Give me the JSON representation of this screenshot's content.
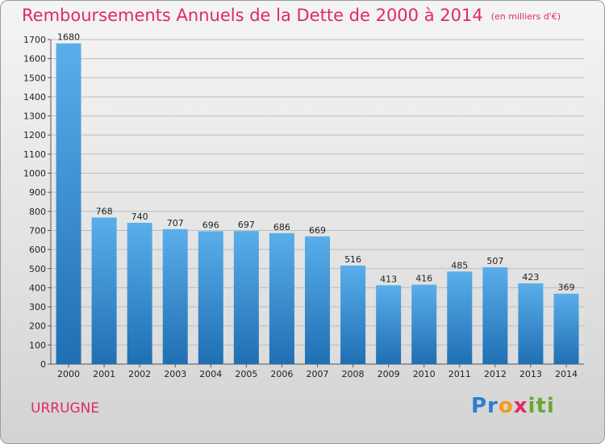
{
  "title": "Remboursements Annuels de la Dette de 2000 à 2014",
  "unit": "(en milliers d'€)",
  "commune": "URRUGNE",
  "logo": {
    "p1": "Pr",
    "p2": "o",
    "p3": "x",
    "p4": "iti"
  },
  "colors": {
    "bar_top": "#5aaeea",
    "bar_bottom": "#1f6fb4",
    "title": "#e0286c",
    "grid": "#bdbdbd"
  },
  "chart_data": {
    "type": "bar",
    "categories": [
      "2000",
      "2001",
      "2002",
      "2003",
      "2004",
      "2005",
      "2006",
      "2007",
      "2008",
      "2009",
      "2010",
      "2011",
      "2012",
      "2013",
      "2014"
    ],
    "values": [
      1680,
      768,
      740,
      707,
      696,
      697,
      686,
      669,
      516,
      413,
      416,
      485,
      507,
      423,
      369
    ],
    "ylim": [
      0,
      1700
    ],
    "yticks": [
      0,
      100,
      200,
      300,
      400,
      500,
      600,
      700,
      800,
      900,
      1000,
      1100,
      1200,
      1300,
      1400,
      1500,
      1600,
      1700
    ],
    "grid": true,
    "xlabel": "",
    "ylabel": ""
  }
}
